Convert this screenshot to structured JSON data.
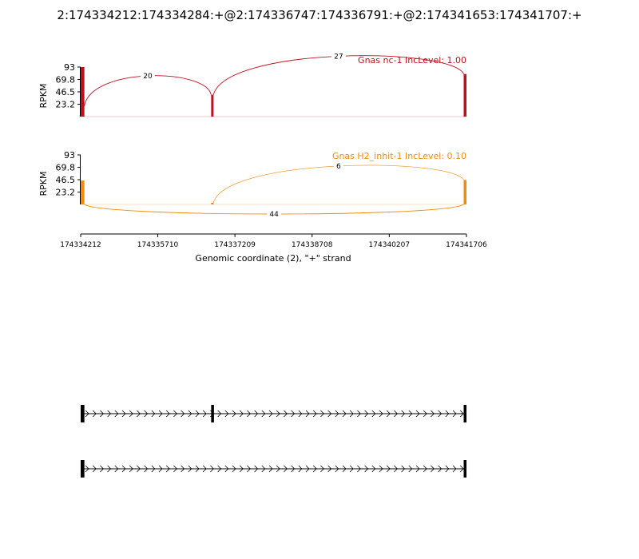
{
  "title": "2:174334212:174334284:+@2:174336747:174336791:+@2:174341653:174341707:+",
  "xlabel": "Genomic coordinate (2), \"+\" strand",
  "chart_data": {
    "type": "sashimi",
    "xlim": [
      174334212,
      174341707
    ],
    "xticks": [
      "174334212",
      "174335710",
      "174337209",
      "174338708",
      "174340207",
      "174341706"
    ],
    "xtick_values": [
      174334212,
      174335710,
      174337209,
      174338708,
      174340207,
      174341706
    ],
    "tracks": [
      {
        "label": "Gnas nc-1 IncLevel: 1.00",
        "color": "#c0101e",
        "ylabel": "RPKM",
        "ylim": [
          0,
          93
        ],
        "yticks": [
          "93",
          "69.8",
          "46.5",
          "23.2"
        ],
        "ytick_values": [
          93,
          69.8,
          46.5,
          23.2
        ],
        "coverage": [
          {
            "start": 174334212,
            "end": 174334284,
            "height": 93,
            "lead": 20
          },
          {
            "start": 174336747,
            "end": 174336791,
            "height": 41
          },
          {
            "start": 174341653,
            "end": 174341707,
            "height": 80
          }
        ],
        "junctions": [
          {
            "start": 174334284,
            "end": 174336747,
            "count": "20",
            "side": "above"
          },
          {
            "start": 174336791,
            "end": 174341653,
            "count": "27",
            "side": "above"
          }
        ]
      },
      {
        "label": "Gnas H2_inhit-1 IncLevel: 0.10",
        "color": "#f28c0d",
        "ylabel": "RPKM",
        "ylim": [
          0,
          93
        ],
        "yticks": [
          "93",
          "69.8",
          "46.5",
          "23.2"
        ],
        "ytick_values": [
          93,
          69.8,
          46.5,
          23.2
        ],
        "coverage": [
          {
            "start": 174334212,
            "end": 174334284,
            "height": 45
          },
          {
            "start": 174336747,
            "end": 174336791,
            "height": 3
          },
          {
            "start": 174341653,
            "end": 174341707,
            "height": 46
          }
        ],
        "junctions": [
          {
            "start": 174336791,
            "end": 174341653,
            "count": "6",
            "side": "above"
          },
          {
            "start": 174334284,
            "end": 174341653,
            "count": "44",
            "side": "below"
          }
        ]
      }
    ],
    "isoforms": [
      {
        "exons": [
          [
            174334212,
            174334284
          ],
          [
            174336747,
            174336791
          ],
          [
            174341653,
            174341707
          ]
        ]
      },
      {
        "exons": [
          [
            174334212,
            174334284
          ],
          [
            174341653,
            174341707
          ]
        ]
      }
    ]
  }
}
